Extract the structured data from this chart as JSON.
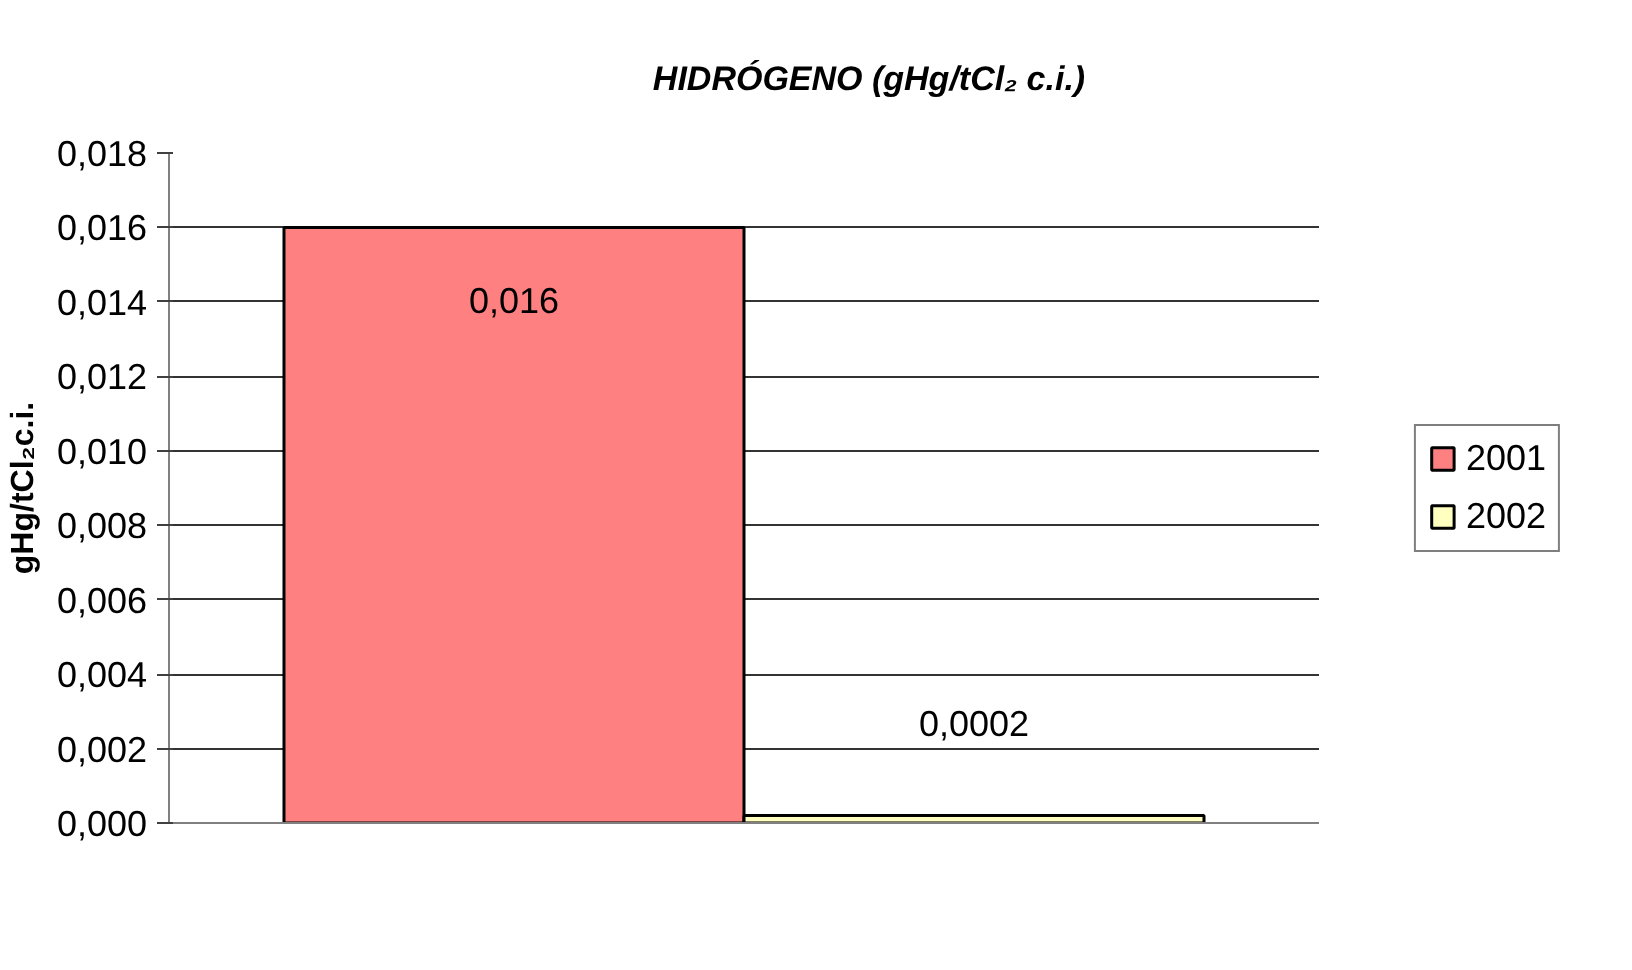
{
  "chart_data": {
    "type": "bar",
    "title": "HIDRÓGENO (gHg/tCl₂ c.i.)",
    "ylabel": "gHg/tCl₂c.i.",
    "categories": [
      null
    ],
    "series": [
      {
        "name": "2001",
        "color": "#ff8080",
        "values": [
          0.016
        ],
        "value_labels": [
          "0,016"
        ]
      },
      {
        "name": "2002",
        "color": "#ffffc0",
        "values": [
          0.0002
        ],
        "value_labels": [
          "0,0002"
        ]
      }
    ],
    "ylim": [
      0,
      0.018
    ],
    "yticks": [
      {
        "value": 0,
        "label": "0,000"
      },
      {
        "value": 0.002,
        "label": "0,002"
      },
      {
        "value": 0.004,
        "label": "0,004"
      },
      {
        "value": 0.006,
        "label": "0,006"
      },
      {
        "value": 0.008,
        "label": "0,008"
      },
      {
        "value": 0.01,
        "label": "0,010"
      },
      {
        "value": 0.012,
        "label": "0,012"
      },
      {
        "value": 0.014,
        "label": "0,014"
      },
      {
        "value": 0.016,
        "label": "0,016"
      },
      {
        "value": 0.018,
        "label": "0,018"
      }
    ],
    "grid": "y",
    "legend": "right"
  }
}
